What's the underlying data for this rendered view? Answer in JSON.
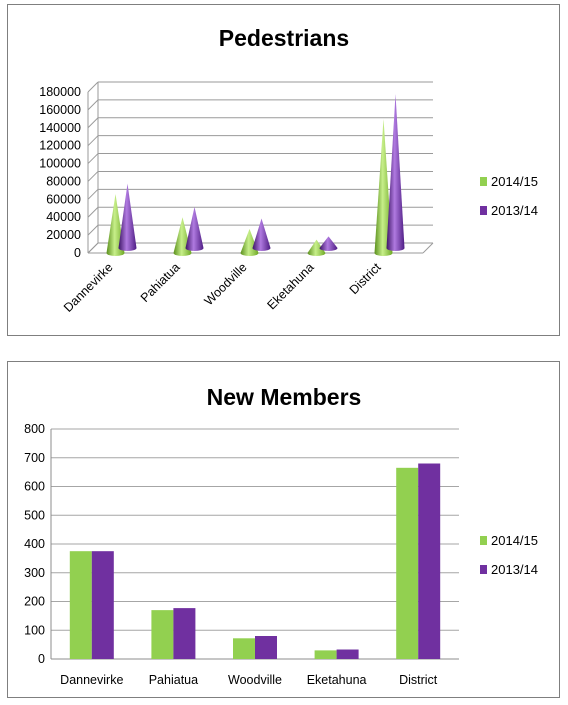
{
  "chart_data": [
    {
      "type": "bar",
      "style": "3d-cone",
      "title": "Pedestrians",
      "categories": [
        "Dannevirke",
        "Pahiatua",
        "Woodville",
        "Eketahuna",
        "District"
      ],
      "series": [
        {
          "name": "2014/15",
          "color": "#92d050",
          "values": [
            66000,
            40000,
            27000,
            15000,
            150000
          ]
        },
        {
          "name": "2013/14",
          "color": "#7030a0",
          "values": [
            72000,
            46000,
            33000,
            13000,
            172000
          ]
        }
      ],
      "yticks": [
        "0",
        "20000",
        "40000",
        "60000",
        "80000",
        "100000",
        "120000",
        "140000",
        "160000",
        "180000"
      ],
      "ylim": [
        0,
        180000
      ],
      "grid": true,
      "legend": "right"
    },
    {
      "type": "bar",
      "title": "New Members",
      "categories": [
        "Dannevirke",
        "Pahiatua",
        "Woodville",
        "Eketahuna",
        "District"
      ],
      "series": [
        {
          "name": "2014/15",
          "color": "#92d050",
          "values": [
            375,
            170,
            72,
            30,
            665
          ]
        },
        {
          "name": "2013/14",
          "color": "#7030a0",
          "values": [
            375,
            177,
            80,
            33,
            680
          ]
        }
      ],
      "yticks": [
        "0",
        "100",
        "200",
        "300",
        "400",
        "500",
        "600",
        "700",
        "800"
      ],
      "ylim": [
        0,
        800
      ],
      "grid": true,
      "legend": "right"
    }
  ]
}
